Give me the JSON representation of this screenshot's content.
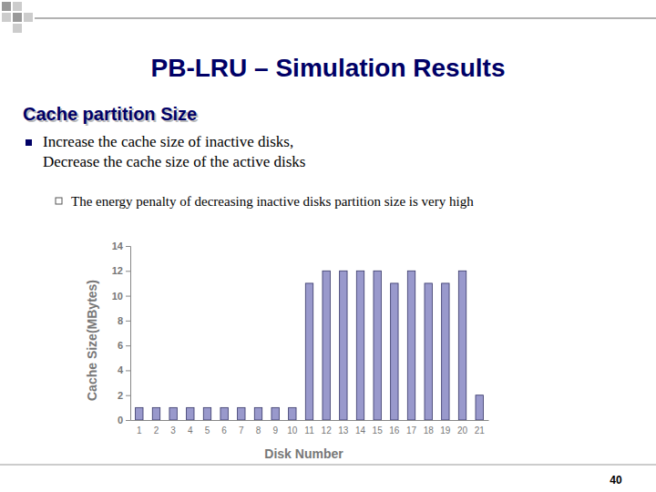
{
  "chart_data": {
    "type": "bar",
    "title": "PB-LRU – Simulation Results",
    "subtitle": "Cache partition Size",
    "annotations": [
      "Increase the cache size of inactive disks,",
      "Decrease the cache size of the active disks",
      "The energy penalty of decreasing inactive disks partition size is very high",
      "40"
    ],
    "xlabel": "Disk Number",
    "ylabel": "Cache Size(MBytes)",
    "categories": [
      "1",
      "2",
      "3",
      "4",
      "5",
      "6",
      "7",
      "8",
      "9",
      "10",
      "11",
      "12",
      "13",
      "14",
      "15",
      "16",
      "17",
      "18",
      "19",
      "20",
      "21"
    ],
    "values": [
      1,
      1,
      1,
      1,
      1,
      1,
      1,
      1,
      1,
      1,
      11,
      12,
      12,
      12,
      12,
      11,
      12,
      11,
      11,
      12,
      2
    ],
    "color": "#9999cc",
    "ylim": [
      0,
      14
    ],
    "yticks": [
      0,
      2,
      4,
      6,
      8,
      10,
      12,
      14
    ],
    "grid": false
  }
}
